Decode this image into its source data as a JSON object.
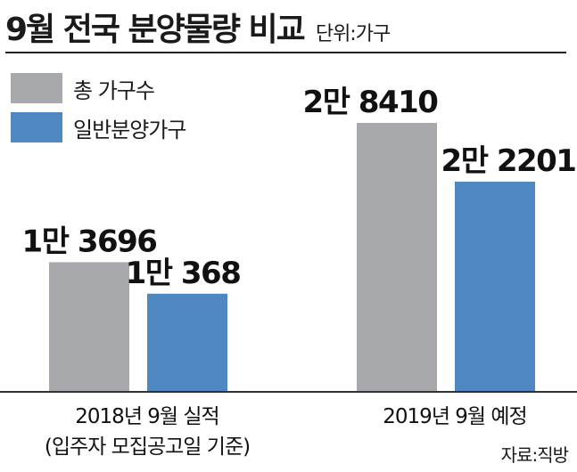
{
  "header": {
    "title": "9월 전국 분양물량 비교",
    "unit": "단위:가구"
  },
  "legend": [
    {
      "label": "총 가구수",
      "color": "#a7a9ac"
    },
    {
      "label": "일반분양가구",
      "color": "#4f87c0"
    }
  ],
  "chart_data": {
    "type": "bar",
    "title": "9월 전국 분양물량 비교",
    "unit": "단위:가구",
    "categories": [
      "2018년 9월 실적\n(입주자 모집공고일 기준)",
      "2019년 9월 예정"
    ],
    "series": [
      {
        "name": "총 가구수",
        "values": [
          13696,
          28410
        ],
        "labels": [
          "1만 3696",
          "2만 8410"
        ],
        "color": "#a7a9ac"
      },
      {
        "name": "일반분양가구",
        "values": [
          10368,
          22201
        ],
        "labels": [
          "1만 368",
          "2만 2201"
        ],
        "color": "#4f87c0"
      }
    ],
    "ylim": [
      0,
      28410
    ]
  },
  "source": "자료:직방"
}
